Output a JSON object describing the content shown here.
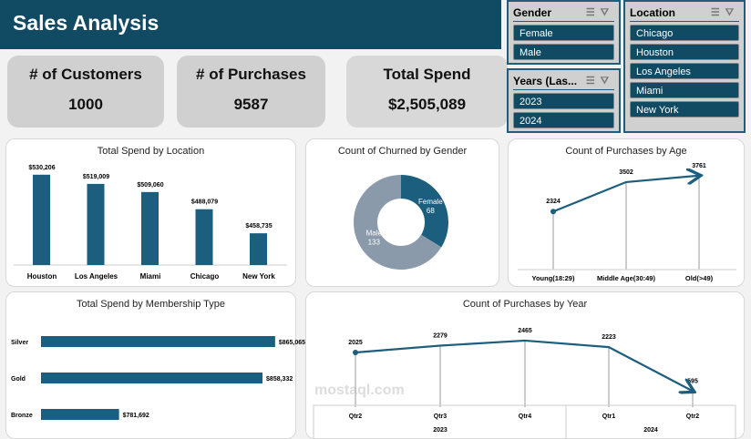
{
  "header": {
    "title": "Sales Analysis"
  },
  "kpis": [
    {
      "label": "# of Customers",
      "value": "1000"
    },
    {
      "label": "# of Purchases",
      "value": "9587"
    },
    {
      "label": "Total Spend",
      "value": "$2,505,089"
    }
  ],
  "slicers": {
    "gender": {
      "title": "Gender",
      "items": [
        "Female",
        "Male"
      ]
    },
    "years": {
      "title": "Years (Las...",
      "items": [
        "2023",
        "2024"
      ]
    },
    "location": {
      "title": "Location",
      "items": [
        "Chicago",
        "Houston",
        "Los Angeles",
        "Miami",
        "New York"
      ]
    }
  },
  "colors": {
    "primary": "#1b5e7e",
    "header": "#114a63",
    "male": "#8a9aaa"
  },
  "watermark": "mostaql.com",
  "chart_data": [
    {
      "id": "loc",
      "type": "bar",
      "title": "Total Spend by Location",
      "categories": [
        "Houston",
        "Los Angeles",
        "Miami",
        "Chicago",
        "New York"
      ],
      "values": [
        530206,
        519009,
        509060,
        488079,
        458735
      ],
      "labels": [
        "$530,206",
        "$519,009",
        "$509,060",
        "$488,079",
        "$458,735"
      ],
      "ylim": [
        420000,
        540000
      ]
    },
    {
      "id": "gender",
      "type": "pie",
      "title": "Count of Churned by Gender",
      "categories": [
        "Female",
        "Male"
      ],
      "values": [
        68,
        133
      ]
    },
    {
      "id": "age",
      "type": "line",
      "title": "Count of Purchases by Age",
      "categories": [
        "Young(18:29)",
        "Middle Age(30:49)",
        "Old(>49)"
      ],
      "values": [
        2324,
        3502,
        3761
      ],
      "ylim": [
        0,
        4300
      ]
    },
    {
      "id": "mem",
      "type": "bar",
      "title": "Total Spend by Membership Type",
      "categories": [
        "Silver",
        "Gold",
        "Bronze"
      ],
      "values": [
        865065,
        858332,
        781692
      ],
      "labels": [
        "$865,065",
        "$858,332",
        "$781,692"
      ],
      "xlim": [
        740000,
        870000
      ]
    },
    {
      "id": "year",
      "type": "line",
      "title": "Count of Purchases by Year",
      "categories": [
        "Qtr2",
        "Qtr3",
        "Qtr4",
        "Qtr1",
        "Qtr2"
      ],
      "groups": [
        "2023",
        "2024"
      ],
      "values": [
        2025,
        2279,
        2465,
        2223,
        595
      ],
      "ylim": [
        0,
        2700
      ]
    }
  ]
}
